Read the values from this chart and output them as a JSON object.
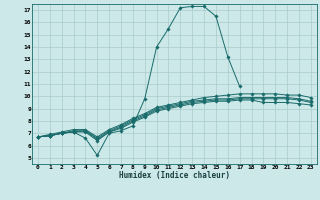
{
  "title": "",
  "xlabel": "Humidex (Indice chaleur)",
  "ylabel": "",
  "background_color": "#cce8e8",
  "grid_color": "#aacccc",
  "line_color": "#1a6b6b",
  "xlim": [
    -0.5,
    23.5
  ],
  "ylim": [
    4.5,
    17.5
  ],
  "xticks": [
    0,
    1,
    2,
    3,
    4,
    5,
    6,
    7,
    8,
    9,
    10,
    11,
    12,
    13,
    14,
    15,
    16,
    17,
    18,
    19,
    20,
    21,
    22,
    23
  ],
  "yticks": [
    5,
    6,
    7,
    8,
    9,
    10,
    11,
    12,
    13,
    14,
    15,
    16,
    17
  ],
  "curves": [
    {
      "x": [
        0,
        1,
        2,
        3,
        4,
        5,
        6,
        7,
        8,
        9,
        10,
        11,
        12,
        13,
        14,
        15,
        16,
        17
      ],
      "y": [
        6.7,
        6.8,
        7.0,
        7.1,
        6.6,
        5.2,
        7.0,
        7.2,
        7.6,
        9.8,
        14.0,
        15.5,
        17.2,
        17.3,
        17.3,
        16.5,
        13.2,
        10.8
      ]
    },
    {
      "x": [
        0,
        1,
        2,
        3,
        4,
        5,
        6,
        7,
        8,
        9,
        10,
        11,
        12,
        13,
        14,
        15,
        16,
        17,
        18,
        19,
        20,
        21,
        22,
        23
      ],
      "y": [
        6.7,
        6.8,
        7.0,
        7.1,
        7.1,
        6.4,
        7.1,
        7.4,
        7.9,
        8.3,
        8.8,
        9.0,
        9.2,
        9.4,
        9.5,
        9.6,
        9.6,
        9.7,
        9.7,
        9.5,
        9.5,
        9.5,
        9.4,
        9.3
      ]
    },
    {
      "x": [
        0,
        1,
        2,
        3,
        4,
        5,
        6,
        7,
        8,
        9,
        10,
        11,
        12,
        13,
        14,
        15,
        16,
        17,
        18,
        19,
        20,
        21,
        22,
        23
      ],
      "y": [
        6.7,
        6.8,
        7.0,
        7.1,
        7.2,
        6.5,
        7.1,
        7.5,
        8.0,
        8.4,
        8.9,
        9.1,
        9.3,
        9.5,
        9.6,
        9.7,
        9.7,
        9.8,
        9.8,
        9.8,
        9.8,
        9.8,
        9.7,
        9.5
      ]
    },
    {
      "x": [
        0,
        1,
        2,
        3,
        4,
        5,
        6,
        7,
        8,
        9,
        10,
        11,
        12,
        13,
        14,
        15,
        16,
        17,
        18,
        19,
        20,
        21,
        22,
        23
      ],
      "y": [
        6.7,
        6.8,
        7.0,
        7.2,
        7.2,
        6.6,
        7.2,
        7.6,
        8.1,
        8.5,
        9.0,
        9.2,
        9.4,
        9.6,
        9.7,
        9.8,
        9.8,
        9.9,
        9.9,
        9.9,
        9.9,
        9.9,
        9.8,
        9.6
      ]
    },
    {
      "x": [
        0,
        1,
        2,
        3,
        4,
        5,
        6,
        7,
        8,
        9,
        10,
        11,
        12,
        13,
        14,
        15,
        16,
        17,
        18,
        19,
        20,
        21,
        22,
        23
      ],
      "y": [
        6.7,
        6.9,
        7.1,
        7.3,
        7.3,
        6.7,
        7.3,
        7.7,
        8.2,
        8.6,
        9.1,
        9.3,
        9.5,
        9.7,
        9.9,
        10.0,
        10.1,
        10.2,
        10.2,
        10.2,
        10.2,
        10.1,
        10.1,
        9.9
      ]
    }
  ]
}
